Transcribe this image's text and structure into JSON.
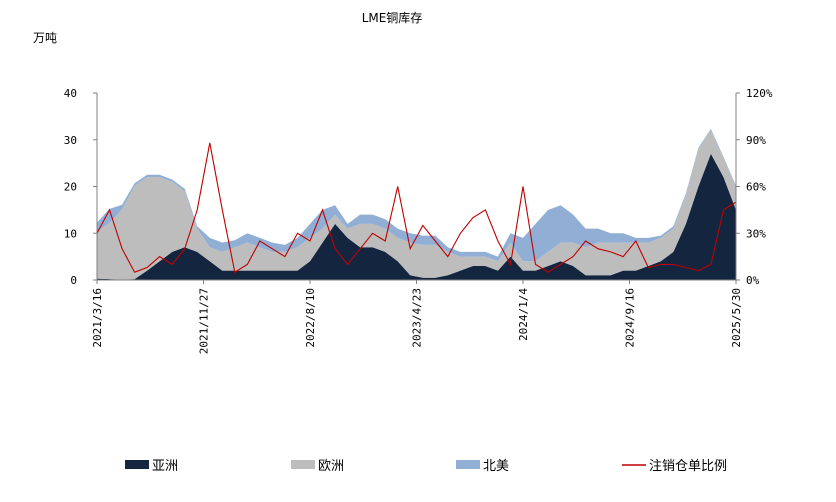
{
  "chart_data": {
    "type": "area",
    "title": "LME铜库存",
    "ylabel": "万吨",
    "ylim": [
      0,
      40
    ],
    "y_ticks": [
      "0",
      "10",
      "20",
      "30",
      "40"
    ],
    "y2lim": [
      0,
      120
    ],
    "y2_ticks": [
      "0%",
      "30%",
      "60%",
      "90%",
      "120%"
    ],
    "x_tick_labels": [
      "2021/3/16",
      "2021/11/27",
      "2022/8/10",
      "2023/4/23",
      "2024/1/4",
      "2024/9/16",
      "2025/5/30"
    ],
    "stacked": true,
    "x_samples": 52,
    "series": [
      {
        "name": "亚洲",
        "color": "#14263f",
        "kind": "area",
        "values": [
          0.3,
          0.2,
          0.1,
          0.2,
          2,
          4,
          6,
          7,
          6,
          4,
          2,
          2,
          2,
          2,
          2,
          2,
          2,
          4,
          8,
          12,
          9,
          7,
          7,
          6,
          4,
          1,
          0.5,
          0.5,
          1,
          2,
          3,
          3,
          2,
          5,
          2,
          2,
          3,
          4,
          3,
          1,
          1,
          1,
          2,
          2,
          3,
          4,
          6,
          12,
          20,
          27,
          22,
          15
        ]
      },
      {
        "name": "欧洲",
        "color": "#bdbdbd",
        "kind": "area",
        "values": [
          10,
          12,
          15,
          20,
          20,
          18,
          15,
          12,
          5,
          3,
          4,
          5,
          6,
          5,
          4,
          4,
          5,
          5,
          3,
          2,
          2,
          5,
          5,
          5,
          5,
          7,
          7,
          7,
          5,
          3,
          2,
          2,
          2,
          3,
          2,
          2,
          3,
          4,
          5,
          6,
          7,
          7,
          6,
          6,
          5,
          5,
          5,
          6,
          8,
          5,
          4,
          5
        ]
      },
      {
        "name": "北美",
        "color": "#91afd4",
        "kind": "area",
        "values": [
          2,
          3,
          1,
          0.5,
          0.5,
          0.5,
          0.5,
          0.5,
          0.5,
          2,
          2,
          1.5,
          2,
          2,
          2,
          1.5,
          2,
          3,
          4,
          2,
          1,
          2,
          2,
          2,
          2,
          2,
          2,
          2,
          1,
          1,
          1,
          1,
          1,
          2,
          5,
          8,
          9,
          8,
          6,
          4,
          3,
          2,
          2,
          1,
          1,
          0.5,
          0.5,
          0.5,
          0.3,
          0.3,
          0.3,
          0.2
        ]
      },
      {
        "name": "注销仓单比例",
        "color": "#c00000",
        "kind": "line",
        "axis": "right",
        "values": [
          30,
          45,
          20,
          5,
          8,
          15,
          10,
          20,
          45,
          88,
          45,
          5,
          10,
          25,
          20,
          15,
          30,
          25,
          45,
          20,
          10,
          20,
          30,
          25,
          60,
          20,
          35,
          25,
          15,
          30,
          40,
          45,
          25,
          10,
          60,
          10,
          5,
          10,
          15,
          25,
          20,
          18,
          15,
          25,
          8,
          10,
          10,
          8,
          6,
          10,
          45,
          50
        ]
      }
    ],
    "legend": [
      "亚洲",
      "欧洲",
      "北美",
      "注销仓单比例"
    ],
    "legend_position": "bottom"
  }
}
